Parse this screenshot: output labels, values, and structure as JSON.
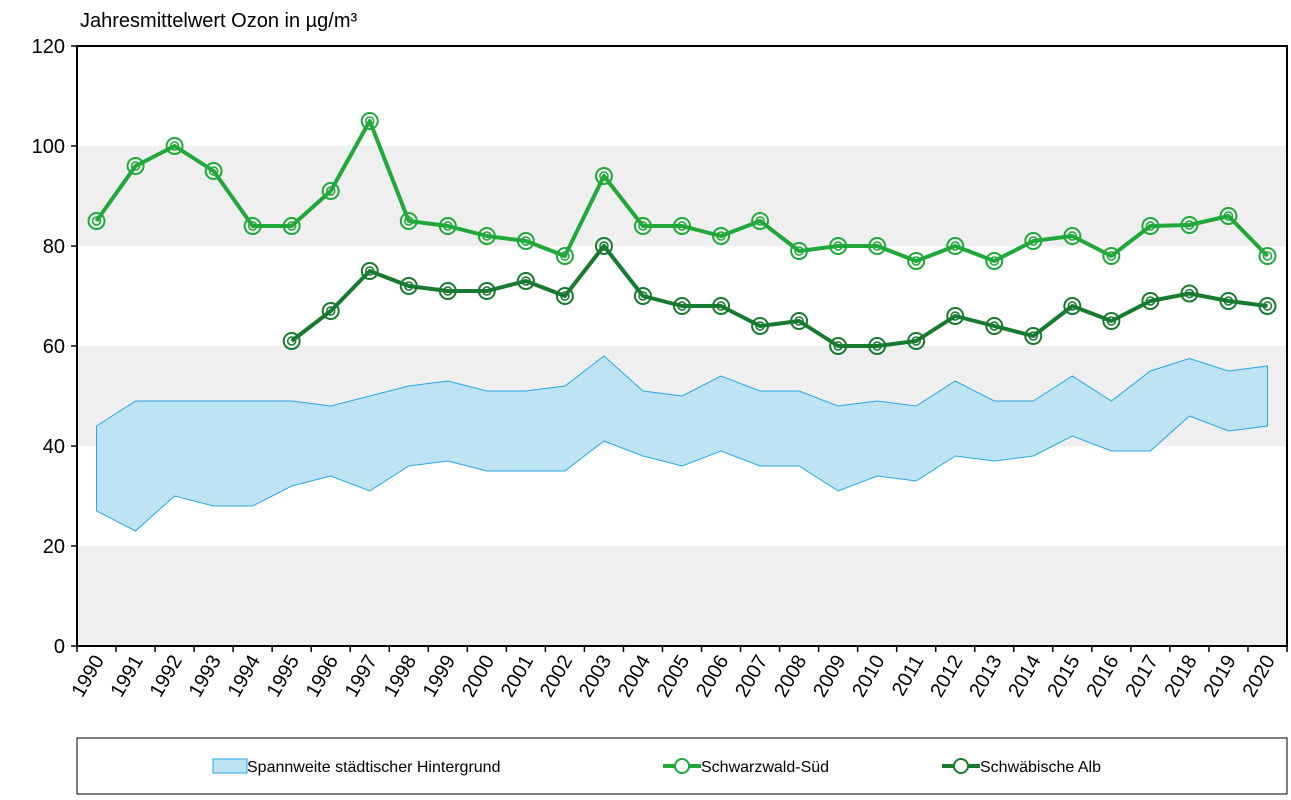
{
  "chart_data": {
    "type": "line",
    "y_label": "Jahresmittelwert Ozon in µg/m³",
    "categories": [
      "1990",
      "1991",
      "1992",
      "1993",
      "1994",
      "1995",
      "1996",
      "1997",
      "1998",
      "1999",
      "2000",
      "2001",
      "2002",
      "2003",
      "2004",
      "2005",
      "2006",
      "2007",
      "2008",
      "2009",
      "2010",
      "2011",
      "2012",
      "2013",
      "2014",
      "2015",
      "2016",
      "2017",
      "2018",
      "2019",
      "2020"
    ],
    "ylim": [
      0,
      120
    ],
    "yticks": [
      0,
      20,
      40,
      60,
      80,
      100,
      120
    ],
    "range": {
      "name": "Spannweite städtischer Hintergrund",
      "color": "#bde3f5",
      "edge_color": "#29a8e0",
      "high": [
        44,
        49,
        49,
        49,
        49,
        49,
        48,
        50,
        52,
        53,
        51,
        51,
        52,
        58,
        51,
        50,
        54,
        51,
        51,
        48,
        49,
        48,
        53,
        49,
        49,
        54,
        49,
        55,
        57.5,
        55,
        56
      ],
      "low": [
        27,
        23,
        30,
        28,
        28,
        32,
        34,
        31,
        36,
        37,
        35,
        35,
        35,
        41,
        38,
        36,
        39,
        36,
        36,
        31,
        34,
        33,
        38,
        37,
        38,
        42,
        39,
        39,
        46,
        43,
        44
      ]
    },
    "series": [
      {
        "name": "Schwarzwald-Süd",
        "color": "#21a83a",
        "values": [
          85,
          96,
          100,
          95,
          84,
          84,
          91,
          105,
          85,
          84,
          82,
          81,
          78,
          94,
          84,
          84,
          82,
          85,
          79,
          80,
          80,
          77,
          80,
          77,
          81,
          82,
          78,
          84,
          84.2,
          86,
          78
        ]
      },
      {
        "name": "Schwäbische Alb",
        "color": "#177a2e",
        "values": [
          null,
          null,
          null,
          null,
          null,
          61,
          67,
          75,
          72,
          71,
          71,
          73,
          70,
          80,
          70,
          68,
          68,
          64,
          65,
          60,
          60,
          61,
          66,
          64,
          62,
          68,
          65,
          69,
          70.5,
          69,
          68
        ]
      }
    ]
  }
}
